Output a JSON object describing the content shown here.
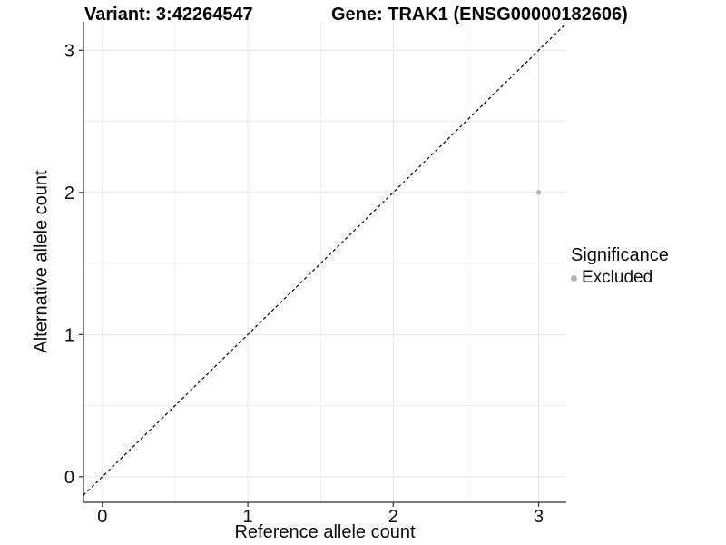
{
  "figure": {
    "background": "#ffffff"
  },
  "chart_data": {
    "type": "scatter",
    "title_left": "Variant: 3:42264547",
    "title_right": "Gene: TRAK1 (ENSG00000182606)",
    "xlabel": "Reference allele count",
    "ylabel": "Alternative allele count",
    "xlim": [
      -0.13,
      3.19
    ],
    "ylim": [
      -0.18,
      3.2
    ],
    "xticks": [
      0,
      1,
      2,
      3
    ],
    "yticks": [
      0,
      1,
      2,
      3
    ],
    "xticks_minor": [
      0.5,
      1.5,
      2.5
    ],
    "yticks_minor": [
      0.5,
      1.5,
      2.5
    ],
    "grid": true,
    "grid_major_color": "#e4e4e4",
    "grid_minor_color": "#efefef",
    "axis_line_color": "#2b2b2b",
    "text_color": "#0d0d0d",
    "reference_line": {
      "slope": 1,
      "intercept": 0,
      "style": "dashed",
      "color": "#000000"
    },
    "series": [
      {
        "name": "Excluded",
        "color": "#b5b5b5",
        "points": [
          {
            "x": 3,
            "y": 2
          }
        ]
      }
    ],
    "legend": {
      "title": "Significance",
      "position": "right",
      "entries": [
        {
          "label": "Excluded",
          "color": "#b5b5b5"
        }
      ]
    }
  }
}
